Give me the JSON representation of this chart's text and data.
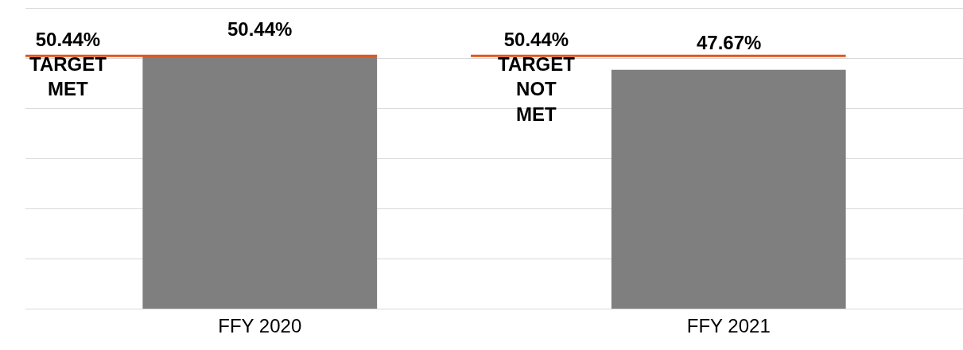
{
  "chart_data": {
    "type": "bar",
    "categories": [
      "FFY 2020",
      "FFY 2021"
    ],
    "series": [
      {
        "color": "#7f7f7f",
        "values": [
          50.44,
          47.67
        ],
        "value_labels": [
          "50.44%",
          "47.67%"
        ]
      }
    ],
    "ref_lines": [
      {
        "axis": "y",
        "value": 50.44,
        "color": "#e2561d"
      }
    ],
    "annotations": [
      "50.44%\nTARGET\nMET",
      "50.44%\nTARGET\nNOT\nMET"
    ],
    "ylim": [
      0,
      61.6
    ],
    "yticks": [
      {
        "value": 0,
        "label": null
      },
      {
        "value": 10,
        "label": null
      },
      {
        "value": 20,
        "label": null
      },
      {
        "value": 30,
        "label": null
      },
      {
        "value": 40,
        "label": null
      },
      {
        "value": 50,
        "label": null
      },
      {
        "value": 60,
        "label": null
      }
    ],
    "grid": "y"
  }
}
